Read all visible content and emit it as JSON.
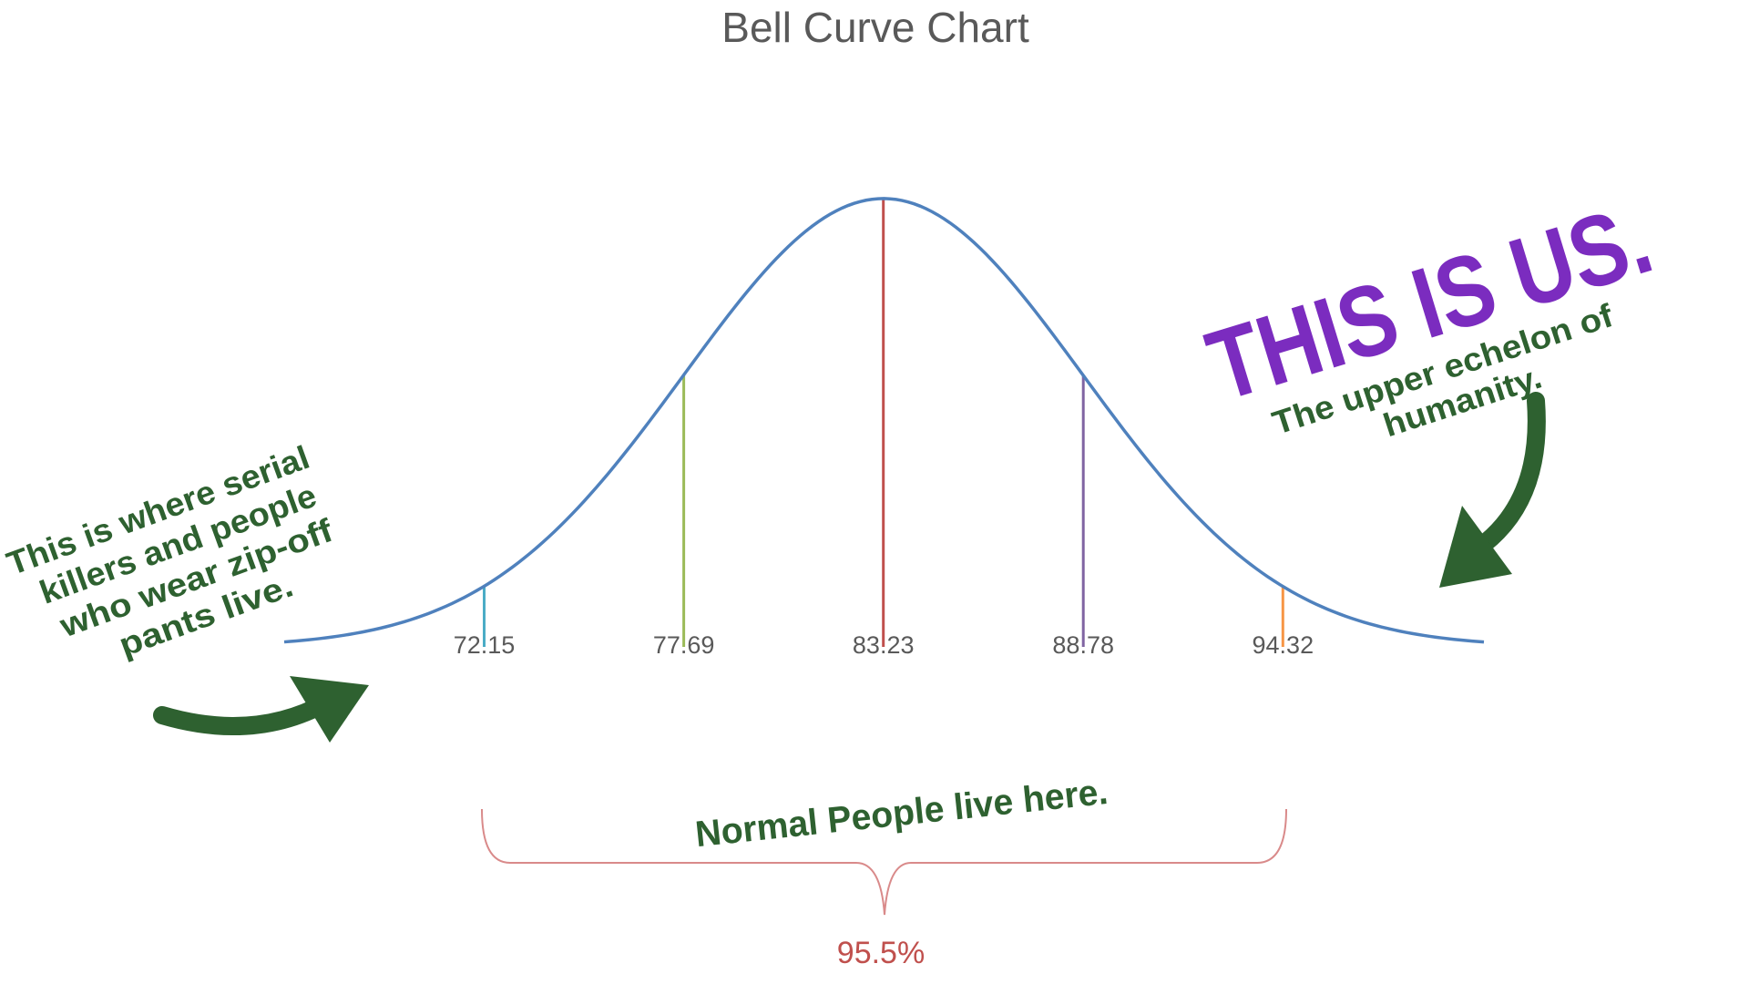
{
  "chart_data": {
    "type": "bell",
    "title": "Bell Curve Chart",
    "mean": 83.23,
    "sd": 5.54,
    "color": "#4f81bd",
    "xlim": [
      66.6,
      99.9
    ],
    "ylim": [
      0,
      0.072
    ],
    "markers": [
      {
        "value": 72.15,
        "color": "#4bacc6"
      },
      {
        "value": 77.69,
        "color": "#9bbb59"
      },
      {
        "value": 83.23,
        "color": "#c0504d"
      },
      {
        "value": 88.78,
        "color": "#8064a2"
      },
      {
        "value": 94.32,
        "color": "#f79646"
      }
    ],
    "bracket_label": "95.5%",
    "annotations": {
      "left": [
        "This is where serial",
        "killers and people",
        "who wear zip-off",
        "pants live."
      ],
      "us": "THIS IS US.",
      "upper": [
        "The upper echelon of",
        "humanity."
      ],
      "normal": "Normal People live here."
    }
  }
}
